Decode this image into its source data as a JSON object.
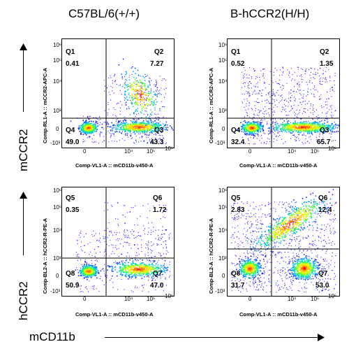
{
  "columns": [
    "C57BL/6(+/+)",
    "B-hCCR2(H/H)"
  ],
  "rows": [
    "mCCR2",
    "hCCR2"
  ],
  "x_label": "mCD11b",
  "tick_labels": {
    "x": [
      "0",
      "10⁴",
      "10⁵",
      "10⁶"
    ],
    "y": [
      "10⁶",
      "10⁵",
      "10⁴",
      "10³",
      "0",
      "-10³"
    ]
  },
  "panels": [
    {
      "id": "p1",
      "y_axis_label": "Comp-RL1-A :: mCCR2-APC-A",
      "x_axis_label": "Comp-VL1-A :: mCD11b-v450-A",
      "quadrants": [
        {
          "name": "Q1",
          "value": "0.41"
        },
        {
          "name": "Q2",
          "value": "7.27"
        },
        {
          "name": "Q3",
          "value": "43.3"
        },
        {
          "name": "Q4",
          "value": "49.0"
        }
      ]
    },
    {
      "id": "p2",
      "y_axis_label": "Comp-RL1-A :: mCCR2-APC-A",
      "x_axis_label": "Comp-VL1-A :: mCD11b-v450-A",
      "quadrants": [
        {
          "name": "Q1",
          "value": "0.52"
        },
        {
          "name": "Q2",
          "value": "1.35"
        },
        {
          "name": "Q3",
          "value": "65.7"
        },
        {
          "name": "Q4",
          "value": "32.4"
        }
      ]
    },
    {
      "id": "p3",
      "y_axis_label": "Comp-BL2-A :: hCCR2-R-PE-A",
      "x_axis_label": "Comp-VL1-A :: mCD11b-v450-A",
      "quadrants": [
        {
          "name": "Q5",
          "value": "0.35"
        },
        {
          "name": "Q6",
          "value": "1.72"
        },
        {
          "name": "Q7",
          "value": "47.0"
        },
        {
          "name": "Q8",
          "value": "50.9"
        }
      ]
    },
    {
      "id": "p4",
      "y_axis_label": "Comp-BL2-A :: hCCR2-R-PE-A",
      "x_axis_label": "Comp-VL1-A :: mCD11b-v450-A",
      "quadrants": [
        {
          "name": "Q5",
          "value": "2.83"
        },
        {
          "name": "Q6",
          "value": "12.4"
        },
        {
          "name": "Q7",
          "value": "53.0"
        },
        {
          "name": "Q8",
          "value": "31.7"
        }
      ]
    }
  ]
}
